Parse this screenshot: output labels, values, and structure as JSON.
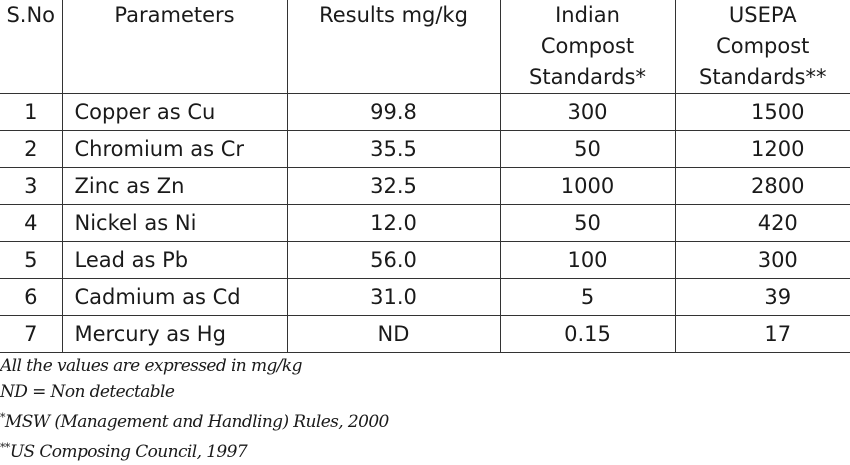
{
  "headers": {
    "sno": "S.No",
    "parameters": "Parameters",
    "results": "Results mg/kg",
    "indian": [
      "Indian",
      "Compost",
      "Standards*"
    ],
    "usepa": [
      "USEPA",
      "Compost",
      "Standards**"
    ]
  },
  "rows": [
    {
      "sno": "1",
      "parameter": "Copper as Cu",
      "result": "99.8",
      "indian": "300",
      "usepa": "1500"
    },
    {
      "sno": "2",
      "parameter": "Chromium as Cr",
      "result": "35.5",
      "indian": "50",
      "usepa": "1200"
    },
    {
      "sno": "3",
      "parameter": "Zinc as Zn",
      "result": "32.5",
      "indian": "1000",
      "usepa": "2800"
    },
    {
      "sno": "4",
      "parameter": "Nickel as Ni",
      "result": "12.0",
      "indian": "50",
      "usepa": "420"
    },
    {
      "sno": "5",
      "parameter": "Lead as Pb",
      "result": "56.0",
      "indian": "100",
      "usepa": "300"
    },
    {
      "sno": "6",
      "parameter": "Cadmium as Cd",
      "result": "31.0",
      "indian": "5",
      "usepa": "39"
    },
    {
      "sno": "7",
      "parameter": "Mercury as Hg",
      "result": "ND",
      "indian": "0.15",
      "usepa": "17"
    }
  ],
  "notes": {
    "line1": "All the values are expressed in mg/kg",
    "line2": "ND = Non detectable",
    "line3_mark": "*",
    "line3": "MSW (Management and Handling) Rules, 2000",
    "line4_mark": "**",
    "line4": "US Composing Council, 1997"
  }
}
